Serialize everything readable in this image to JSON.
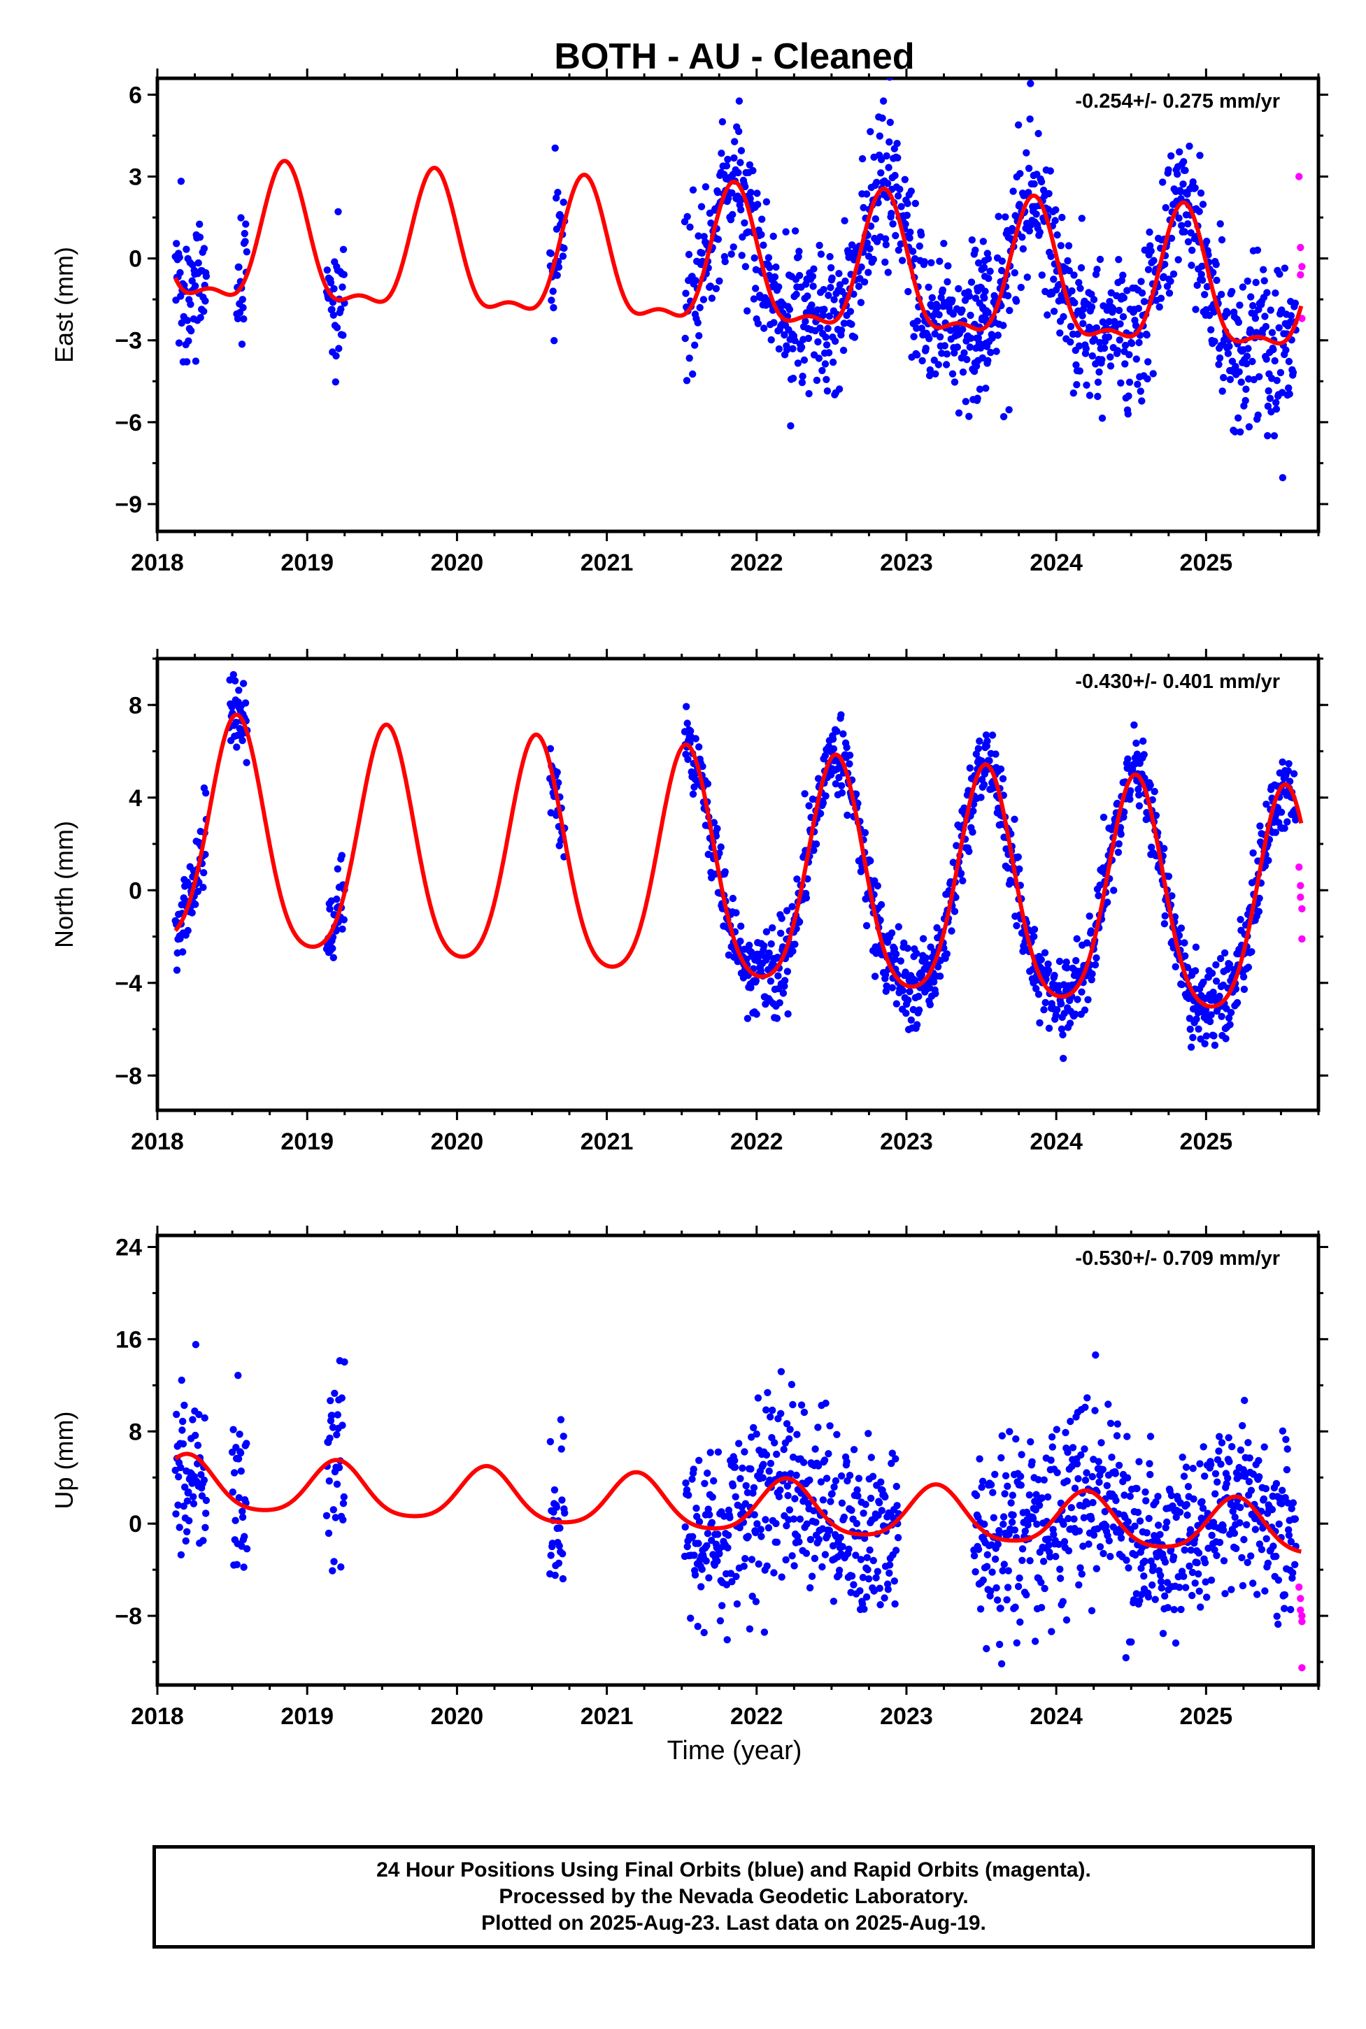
{
  "title": "BOTH  - AU - Cleaned",
  "xlabel": "Time (year)",
  "footer": {
    "line1": "24 Hour Positions Using Final Orbits (blue) and Rapid Orbits (magenta).",
    "line2": "Processed by the Nevada Geodetic Laboratory.",
    "line3": "Plotted on 2025-Aug-23. Last data on 2025-Aug-19."
  },
  "colors": {
    "final_points": "#0000ff",
    "rapid_points": "#ff00ff",
    "model_curve": "#ff0000"
  },
  "chart_data": [
    {
      "type": "scatter",
      "panel": "east",
      "ylabel": "East (mm)",
      "annotation": "-0.254+/- 0.275 mm/yr",
      "xlim": [
        2018.0,
        2025.75
      ],
      "ylim": [
        -10.0,
        6.6
      ],
      "x_ticks": [
        2018,
        2019,
        2020,
        2021,
        2022,
        2023,
        2024,
        2025
      ],
      "y_ticks": [
        6,
        3,
        0,
        -3,
        -6,
        -9
      ],
      "y_tick_labels": [
        "6",
        "3",
        "0",
        "−3",
        "−6",
        "−9"
      ],
      "segments": [
        [
          2018.12,
          2018.33
        ],
        [
          2018.53,
          2018.6
        ],
        [
          2019.13,
          2019.25
        ],
        [
          2020.62,
          2020.72
        ],
        [
          2021.52,
          2023.55
        ],
        [
          2023.45,
          2025.6
        ]
      ],
      "model_params": {
        "offset": -0.4,
        "trend": -0.254,
        "ref_year": 2021.5,
        "amp_annual": 2.4,
        "amp_semiannual": 0.9,
        "peak_year_fraction": 0.85,
        "noise": 1.4
      },
      "rapid_points": {
        "x": [
          2025.62,
          2025.63,
          2025.63,
          2025.64,
          2025.64
        ],
        "y": [
          3.0,
          0.4,
          -0.6,
          -2.2,
          -0.3
        ]
      }
    },
    {
      "type": "scatter",
      "panel": "north",
      "ylabel": "North (mm)",
      "annotation": "-0.430+/- 0.401 mm/yr",
      "xlim": [
        2018.0,
        2025.75
      ],
      "ylim": [
        -9.5,
        10.0
      ],
      "x_ticks": [
        2018,
        2019,
        2020,
        2021,
        2022,
        2023,
        2024,
        2025
      ],
      "y_ticks": [
        8,
        4,
        0,
        -4,
        -8
      ],
      "y_tick_labels": [
        "8",
        "4",
        "0",
        "−4",
        "−8"
      ],
      "segments": [
        [
          2018.12,
          2018.33
        ],
        [
          2018.48,
          2018.6
        ],
        [
          2019.13,
          2019.25
        ],
        [
          2020.62,
          2020.72
        ],
        [
          2021.52,
          2025.6
        ]
      ],
      "model_params": {
        "offset": 0.6,
        "trend": -0.43,
        "ref_year": 2021.5,
        "amp_annual": 4.9,
        "amp_semiannual": 0.8,
        "peak_year_fraction": 0.53,
        "noise": 0.9
      },
      "rapid_points": {
        "x": [
          2025.62,
          2025.63,
          2025.63,
          2025.64,
          2025.64
        ],
        "y": [
          1.0,
          0.2,
          -0.3,
          -0.8,
          -2.1
        ]
      }
    },
    {
      "type": "scatter",
      "panel": "up",
      "ylabel": "Up (mm)",
      "annotation": "-0.530+/- 0.709 mm/yr",
      "xlim": [
        2018.0,
        2025.75
      ],
      "ylim": [
        -14.0,
        25.0
      ],
      "x_ticks": [
        2018,
        2019,
        2020,
        2021,
        2022,
        2023,
        2024,
        2025
      ],
      "y_ticks": [
        24,
        16,
        8,
        0,
        -8
      ],
      "y_tick_labels": [
        "24",
        "16",
        "8",
        "0",
        "−8"
      ],
      "segments": [
        [
          2018.12,
          2018.33
        ],
        [
          2018.5,
          2018.6
        ],
        [
          2019.13,
          2019.25
        ],
        [
          2020.62,
          2020.72
        ],
        [
          2021.52,
          2022.95
        ],
        [
          2023.45,
          2025.6
        ]
      ],
      "model_params": {
        "offset": 1.6,
        "trend": -0.53,
        "ref_year": 2021.5,
        "amp_annual": 2.3,
        "amp_semiannual": 0.4,
        "peak_year_fraction": 0.2,
        "noise": 4.0
      },
      "rapid_points": {
        "x": [
          2025.62,
          2025.63,
          2025.63,
          2025.64,
          2025.64,
          2025.64
        ],
        "y": [
          -5.5,
          -6.5,
          -7.5,
          -8.0,
          -8.5,
          -12.5
        ]
      }
    }
  ]
}
